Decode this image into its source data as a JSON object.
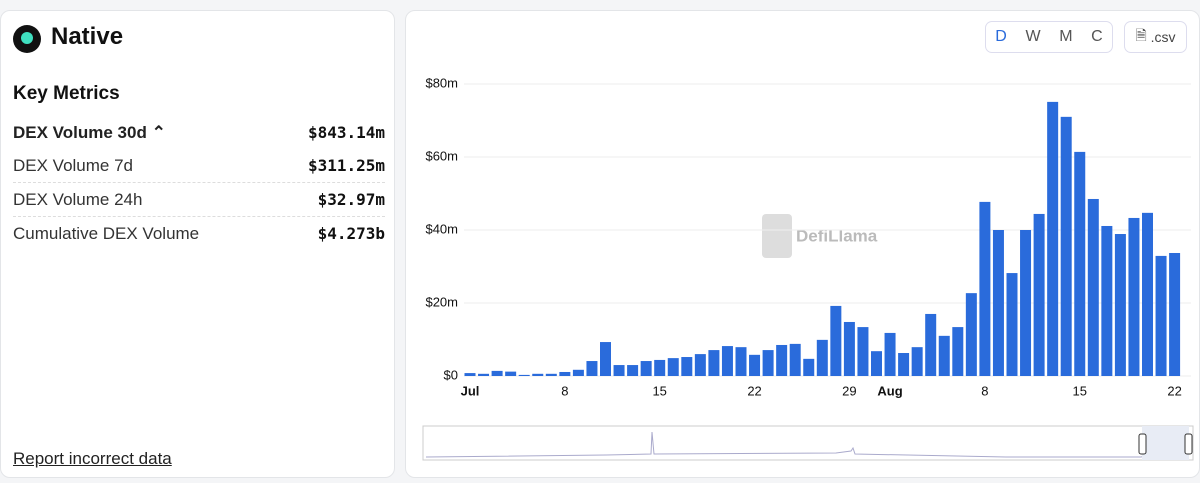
{
  "header": {
    "title": "Native"
  },
  "metrics": {
    "title": "Key Metrics",
    "rows": [
      [
        "DEX Volume 30d",
        "$843.14m"
      ],
      [
        "DEX Volume 7d",
        "$311.25m"
      ],
      [
        "DEX Volume 24h",
        "$32.97m"
      ],
      [
        "Cumulative DEX Volume",
        "$4.273b"
      ]
    ]
  },
  "report_link": "Report incorrect data",
  "controls": {
    "periods": [
      "D",
      "W",
      "M",
      "C"
    ],
    "download": ".csv"
  },
  "watermark": "DefiLlama",
  "chart_data": {
    "type": "bar",
    "color": "#2a6bdb",
    "categories": [
      "Jul",
      null,
      null,
      null,
      null,
      null,
      null,
      "8",
      null,
      null,
      null,
      null,
      null,
      null,
      "15",
      null,
      null,
      null,
      null,
      null,
      null,
      "22",
      null,
      null,
      null,
      null,
      null,
      null,
      "29",
      null,
      null,
      "Aug",
      null,
      null,
      null,
      null,
      null,
      null,
      "8",
      null,
      null,
      null,
      null,
      null,
      null,
      "15",
      null,
      null,
      null,
      null,
      null,
      null,
      "22"
    ],
    "values": [
      0.8,
      0.6,
      1.4,
      1.2,
      0.3,
      0.6,
      0.6,
      1.1,
      1.7,
      4.1,
      9.3,
      3.0,
      3.0,
      4.1,
      4.4,
      4.9,
      5.2,
      6.0,
      7.1,
      8.2,
      7.9,
      5.8,
      7.1,
      8.5,
      8.8,
      4.7,
      9.9,
      19.2,
      14.8,
      13.4,
      6.8,
      11.8,
      6.3,
      7.9,
      17.0,
      11.0,
      13.4,
      22.7,
      47.7,
      40.0,
      28.2,
      40.0,
      44.4,
      75.1,
      71.0,
      61.4,
      48.5,
      41.1,
      38.9,
      43.3,
      44.7,
      32.9,
      33.7
    ],
    "ylim": [
      0,
      80
    ],
    "yticks": [
      {
        "value": 0,
        "label": "$0"
      },
      {
        "value": 20,
        "label": "$20m"
      },
      {
        "value": 40,
        "label": "$40m"
      },
      {
        "value": 60,
        "label": "$60m"
      },
      {
        "value": 80,
        "label": "$80m"
      }
    ],
    "grid": true
  }
}
